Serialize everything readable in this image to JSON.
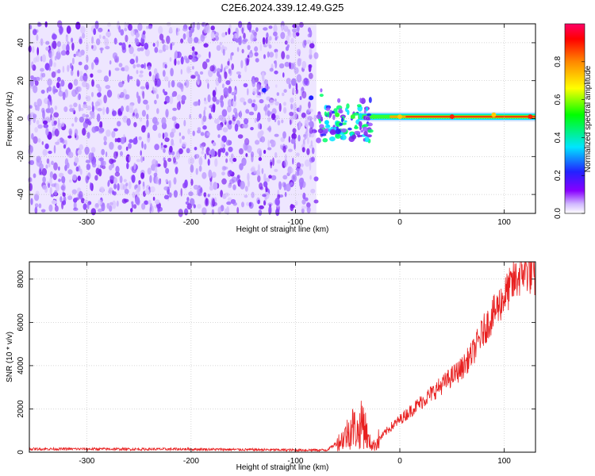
{
  "title": "C2E6.2024.339.12.49.G25",
  "chart_data": [
    {
      "type": "heatmap",
      "xlabel": "Height of straight line (km)",
      "ylabel": "Frequency (Hz)",
      "xlim": [
        -355,
        130
      ],
      "ylim": [
        -50,
        50
      ],
      "xticks": [
        -300,
        -200,
        -100,
        0,
        100
      ],
      "yticks": [
        -40,
        -20,
        0,
        20,
        40
      ],
      "xtick_labels": [
        "-300",
        "-200",
        "-100",
        "0",
        "100"
      ],
      "ytick_labels": [
        "-40",
        "-20",
        "0",
        "20",
        "40"
      ],
      "colorbar": {
        "label": "Normalized spectral amplitude",
        "range": [
          0,
          1
        ],
        "ticks": [
          0.0,
          0.2,
          0.4,
          0.6,
          0.8
        ],
        "tick_labels": [
          "0.0",
          "0.2",
          "0.4",
          "0.6",
          "0.8"
        ],
        "colors": [
          "#ffffff",
          "#b07cff",
          "#7700ee",
          "#2222ff",
          "#00e5ff",
          "#00ff00",
          "#ffff00",
          "#ff8800",
          "#ff0000",
          "#ff0066"
        ]
      },
      "grid": true,
      "noise_region_end_x": -80,
      "tone_frequency": 1,
      "features": [
        {
          "x": -130,
          "y": 15,
          "value": 0.25
        },
        {
          "x": -85,
          "y": 11,
          "value": 0.3
        },
        {
          "x": -70,
          "y": -2,
          "value": 0.5
        },
        {
          "x": -60,
          "y": 2,
          "value": 0.6
        },
        {
          "x": -45,
          "y": 1,
          "value": 0.65
        },
        {
          "x": -25,
          "y": 1,
          "value": 0.7
        },
        {
          "x": 0,
          "y": 1,
          "value": 0.8
        },
        {
          "x": 50,
          "y": 1,
          "value": 0.9
        },
        {
          "x": 90,
          "y": 2,
          "value": 0.85
        },
        {
          "x": 125,
          "y": 1,
          "value": 0.95
        }
      ]
    },
    {
      "type": "line",
      "xlabel": "Height of straight line (km)",
      "ylabel": "SNR (10 * v/v)",
      "xlim": [
        -355,
        130
      ],
      "ylim": [
        0,
        8800
      ],
      "xticks": [
        -300,
        -200,
        -100,
        0,
        100
      ],
      "yticks": [
        0,
        2000,
        4000,
        6000,
        8000
      ],
      "xtick_labels": [
        "-300",
        "-200",
        "-100",
        "0",
        "100"
      ],
      "ytick_labels": [
        "0",
        "2000",
        "4000",
        "6000",
        "8000"
      ],
      "grid": true,
      "line_color": "#e82020",
      "x": [
        -355,
        -300,
        -250,
        -200,
        -150,
        -100,
        -70,
        -55,
        -45,
        -40,
        -35,
        -30,
        -25,
        -20,
        -10,
        0,
        20,
        40,
        50,
        60,
        70,
        80,
        90,
        100,
        110,
        120,
        130
      ],
      "y": [
        150,
        150,
        140,
        140,
        120,
        100,
        100,
        600,
        1200,
        900,
        1500,
        500,
        300,
        600,
        1100,
        1500,
        2300,
        3100,
        3500,
        3900,
        4600,
        5600,
        6400,
        7200,
        7900,
        8500,
        8100
      ]
    }
  ]
}
